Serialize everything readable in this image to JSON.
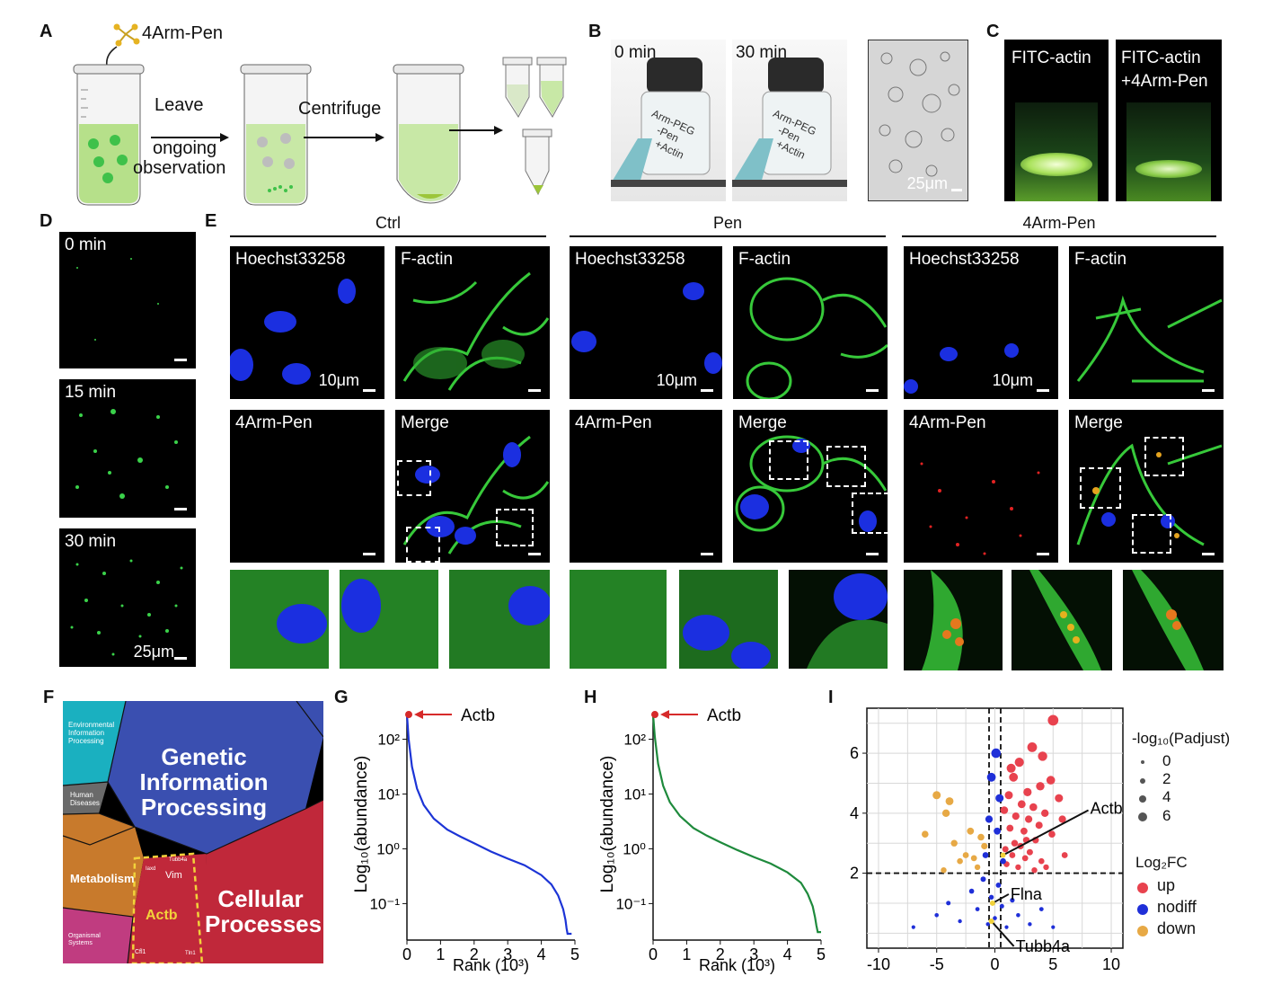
{
  "panels": {
    "A": "A",
    "B": "B",
    "C": "C",
    "D": "D",
    "E": "E",
    "F": "F",
    "G": "G",
    "H": "H",
    "I": "I"
  },
  "panel_a": {
    "reagent": "4Arm-Pen",
    "leave": "Leave",
    "ongoing": "ongoing",
    "observation": "observation",
    "centrifuge": "Centrifuge"
  },
  "panel_b": {
    "t0": "0 min",
    "t30": "30 min",
    "tube_text": "Arm-PEG\n-Pen\n+ Actin",
    "scale": "25μm"
  },
  "panel_c": {
    "left": "FITC-actin",
    "right_line1": "FITC-actin",
    "right_line2": "+4Arm-Pen"
  },
  "panel_d": {
    "t0": "0 min",
    "t15": "15 min",
    "t30": "30 min",
    "scale": "25μm"
  },
  "panel_e": {
    "groups": [
      "Ctrl",
      "Pen",
      "4Arm-Pen"
    ],
    "channels": {
      "hoechst": "Hoechst33258",
      "factin": "F-actin",
      "pen": "4Arm-Pen",
      "merge": "Merge"
    },
    "scale": "10μm"
  },
  "panel_f": {
    "regions": {
      "gip": "Genetic Information Processing",
      "gip_l1": "Genetic",
      "gip_l2": "Information",
      "gip_l3": "Processing",
      "cp_l1": "Cellular",
      "cp_l2": "Processes",
      "metabolism": "Metabolism",
      "eip_l1": "Environmental",
      "eip_l2": "Information",
      "eip_l3": "Processing",
      "hd_l1": "Human",
      "hd_l2": "Diseases",
      "os_l1": "Organismal",
      "os_l2": "Systems"
    },
    "genes": {
      "actb": "Actb",
      "vim": "Vim",
      "tubb4a": "Tubb4a",
      "cfl1": "Cfl1",
      "tln1": "Tln1",
      "anxa": "Iaxd"
    },
    "colors": {
      "gip": "#3a4fb0",
      "cp": "#c0283a",
      "metabolism": "#c87a2c",
      "eip": "#1ab0c0",
      "hd": "#6a6a6a",
      "os": "#c03c80",
      "highlight": "#f2d23a"
    }
  },
  "panel_g": {
    "xlabel": "Rank (10³)",
    "ylabel": "Log₁₀(abundance)",
    "annotation": "Actb",
    "color": "#1c34d6"
  },
  "panel_h": {
    "xlabel": "Rank (10³)",
    "ylabel": "Log₁₀(abundance)",
    "annotation": "Actb",
    "color": "#1e8a3c"
  },
  "panel_i": {
    "legend_size_title": "-log₁₀(Padjust)",
    "size_levels": [
      "0",
      "2",
      "4",
      "6"
    ],
    "legend_color_title": "Log₂FC",
    "color_levels": [
      {
        "label": "up",
        "color": "#e8424e"
      },
      {
        "label": "nodiff",
        "color": "#1f2fd8"
      },
      {
        "label": "down",
        "color": "#e7a945"
      }
    ],
    "annotations": [
      "Actb",
      "Flna",
      "Tubb4a"
    ]
  },
  "chart_data": [
    {
      "type": "line",
      "panel": "G",
      "xlabel": "Rank (10³)",
      "ylabel": "Log₁₀(abundance)",
      "xlim": [
        0,
        5
      ],
      "ylim": [
        -1.6,
        2.5
      ],
      "x_ticks": [
        0,
        1,
        2,
        3,
        4,
        5
      ],
      "y_ticks": [
        {
          "v": 2,
          "label": "10²"
        },
        {
          "v": 1,
          "label": "10¹"
        },
        {
          "v": 0,
          "label": "10⁰"
        },
        {
          "v": -1,
          "label": "10⁻¹"
        }
      ],
      "series": [
        {
          "x": [
            0,
            0.05,
            0.15,
            0.3,
            0.5,
            0.8,
            1.2,
            1.6,
            2,
            2.5,
            3,
            3.5,
            4,
            4.3,
            4.5,
            4.65,
            4.72,
            4.75,
            4.78,
            4.9
          ],
          "y": [
            2.45,
            2.0,
            1.5,
            1.1,
            0.8,
            0.55,
            0.35,
            0.22,
            0.1,
            -0.05,
            -0.18,
            -0.3,
            -0.48,
            -0.65,
            -0.85,
            -1.1,
            -1.3,
            -1.45,
            -1.55,
            -1.55
          ]
        }
      ],
      "annotations": [
        {
          "text": "Actb",
          "x": 0,
          "y": 2.45
        }
      ]
    },
    {
      "type": "line",
      "panel": "H",
      "xlabel": "Rank (10³)",
      "ylabel": "Log₁₀(abundance)",
      "xlim": [
        0,
        5
      ],
      "ylim": [
        -1.6,
        2.5
      ],
      "x_ticks": [
        0,
        1,
        2,
        3,
        4,
        5
      ],
      "y_ticks": [
        {
          "v": 2,
          "label": "10²"
        },
        {
          "v": 1,
          "label": "10¹"
        },
        {
          "v": 0,
          "label": "10⁰"
        },
        {
          "v": -1,
          "label": "10⁻¹"
        }
      ],
      "series": [
        {
          "x": [
            0,
            0.05,
            0.15,
            0.3,
            0.5,
            0.8,
            1.2,
            1.6,
            2,
            2.5,
            3,
            3.5,
            4,
            4.4,
            4.6,
            4.75,
            4.82,
            4.86,
            4.9,
            5.0
          ],
          "y": [
            2.45,
            2.05,
            1.55,
            1.15,
            0.85,
            0.6,
            0.38,
            0.24,
            0.12,
            -0.02,
            -0.15,
            -0.27,
            -0.43,
            -0.62,
            -0.82,
            -1.05,
            -1.25,
            -1.4,
            -1.52,
            -1.52
          ]
        }
      ],
      "annotations": [
        {
          "text": "Actb",
          "x": 0,
          "y": 2.45
        }
      ]
    },
    {
      "type": "scatter",
      "panel": "I",
      "xlabel": "",
      "ylabel": "",
      "xlim": [
        -11,
        11
      ],
      "ylim": [
        -0.5,
        7.5
      ],
      "x_ticks": [
        -10,
        -5,
        0,
        5,
        10
      ],
      "y_ticks": [
        2,
        4,
        6
      ],
      "thresholds": {
        "y": 2,
        "x": [
          -0.5,
          0.5
        ]
      },
      "series": [
        {
          "name": "up",
          "points": [
            [
              5.0,
              7.1
            ],
            [
              3.2,
              6.2
            ],
            [
              4.1,
              5.9
            ],
            [
              2.1,
              5.7
            ],
            [
              1.6,
              5.2
            ],
            [
              4.8,
              5.1
            ],
            [
              3.9,
              4.9
            ],
            [
              2.8,
              4.7
            ],
            [
              1.2,
              4.6
            ],
            [
              5.5,
              4.5
            ],
            [
              2.3,
              4.3
            ],
            [
              3.3,
              4.2
            ],
            [
              4.3,
              4.0
            ],
            [
              1.8,
              3.9
            ],
            [
              2.9,
              3.8
            ],
            [
              3.8,
              3.6
            ],
            [
              1.3,
              3.5
            ],
            [
              2.5,
              3.4
            ],
            [
              4.9,
              3.3
            ],
            [
              3.5,
              3.1
            ],
            [
              1.7,
              3.0
            ],
            [
              2.2,
              2.9
            ],
            [
              0.9,
              2.8
            ],
            [
              3.0,
              2.7
            ],
            [
              1.5,
              2.6
            ],
            [
              2.6,
              2.5
            ],
            [
              4.0,
              2.4
            ],
            [
              1.0,
              2.3
            ],
            [
              2.0,
              2.2
            ],
            [
              3.4,
              2.1
            ],
            [
              0.8,
              4.1
            ],
            [
              1.4,
              5.5
            ],
            [
              5.8,
              3.8
            ],
            [
              6.0,
              2.6
            ],
            [
              2.7,
              3.1
            ],
            [
              4.4,
              2.2
            ]
          ]
        },
        {
          "name": "down",
          "points": [
            [
              -5.0,
              4.6
            ],
            [
              -3.9,
              4.4
            ],
            [
              -4.2,
              4.0
            ],
            [
              -1.2,
              3.2
            ],
            [
              -3.5,
              3.0
            ],
            [
              -2.5,
              2.6
            ],
            [
              -1.8,
              2.5
            ],
            [
              -4.4,
              2.1
            ],
            [
              -0.9,
              2.9
            ],
            [
              -2.1,
              3.4
            ],
            [
              -1.5,
              2.2
            ],
            [
              -6.0,
              3.3
            ],
            [
              -3.0,
              2.4
            ]
          ]
        },
        {
          "name": "nodiff",
          "points": [
            [
              -7.0,
              0.2
            ],
            [
              -5.0,
              0.6
            ],
            [
              -4.0,
              1.0
            ],
            [
              -3.0,
              0.4
            ],
            [
              -2.0,
              1.4
            ],
            [
              -1.5,
              0.8
            ],
            [
              -1.0,
              1.8
            ],
            [
              -0.6,
              0.3
            ],
            [
              -0.3,
              1.2
            ],
            [
              0,
              0.5
            ],
            [
              0.3,
              1.6
            ],
            [
              0.6,
              0.9
            ],
            [
              1.0,
              0.2
            ],
            [
              1.5,
              1.1
            ],
            [
              2.0,
              0.6
            ],
            [
              3.0,
              0.3
            ],
            [
              4.0,
              0.8
            ],
            [
              5.0,
              0.2
            ],
            [
              -0.8,
              2.6
            ],
            [
              0.2,
              3.4
            ],
            [
              0.4,
              4.5
            ],
            [
              -0.3,
              5.2
            ],
            [
              0.1,
              6.0
            ],
            [
              -0.5,
              3.8
            ],
            [
              0.7,
              2.4
            ]
          ]
        }
      ],
      "annotations": [
        {
          "text": "Actb",
          "x": 0.7,
          "y": 2.6
        },
        {
          "text": "Flna",
          "x": -0.2,
          "y": 1.0
        },
        {
          "text": "Tubb4a",
          "x": -0.3,
          "y": 0.4
        }
      ]
    }
  ]
}
